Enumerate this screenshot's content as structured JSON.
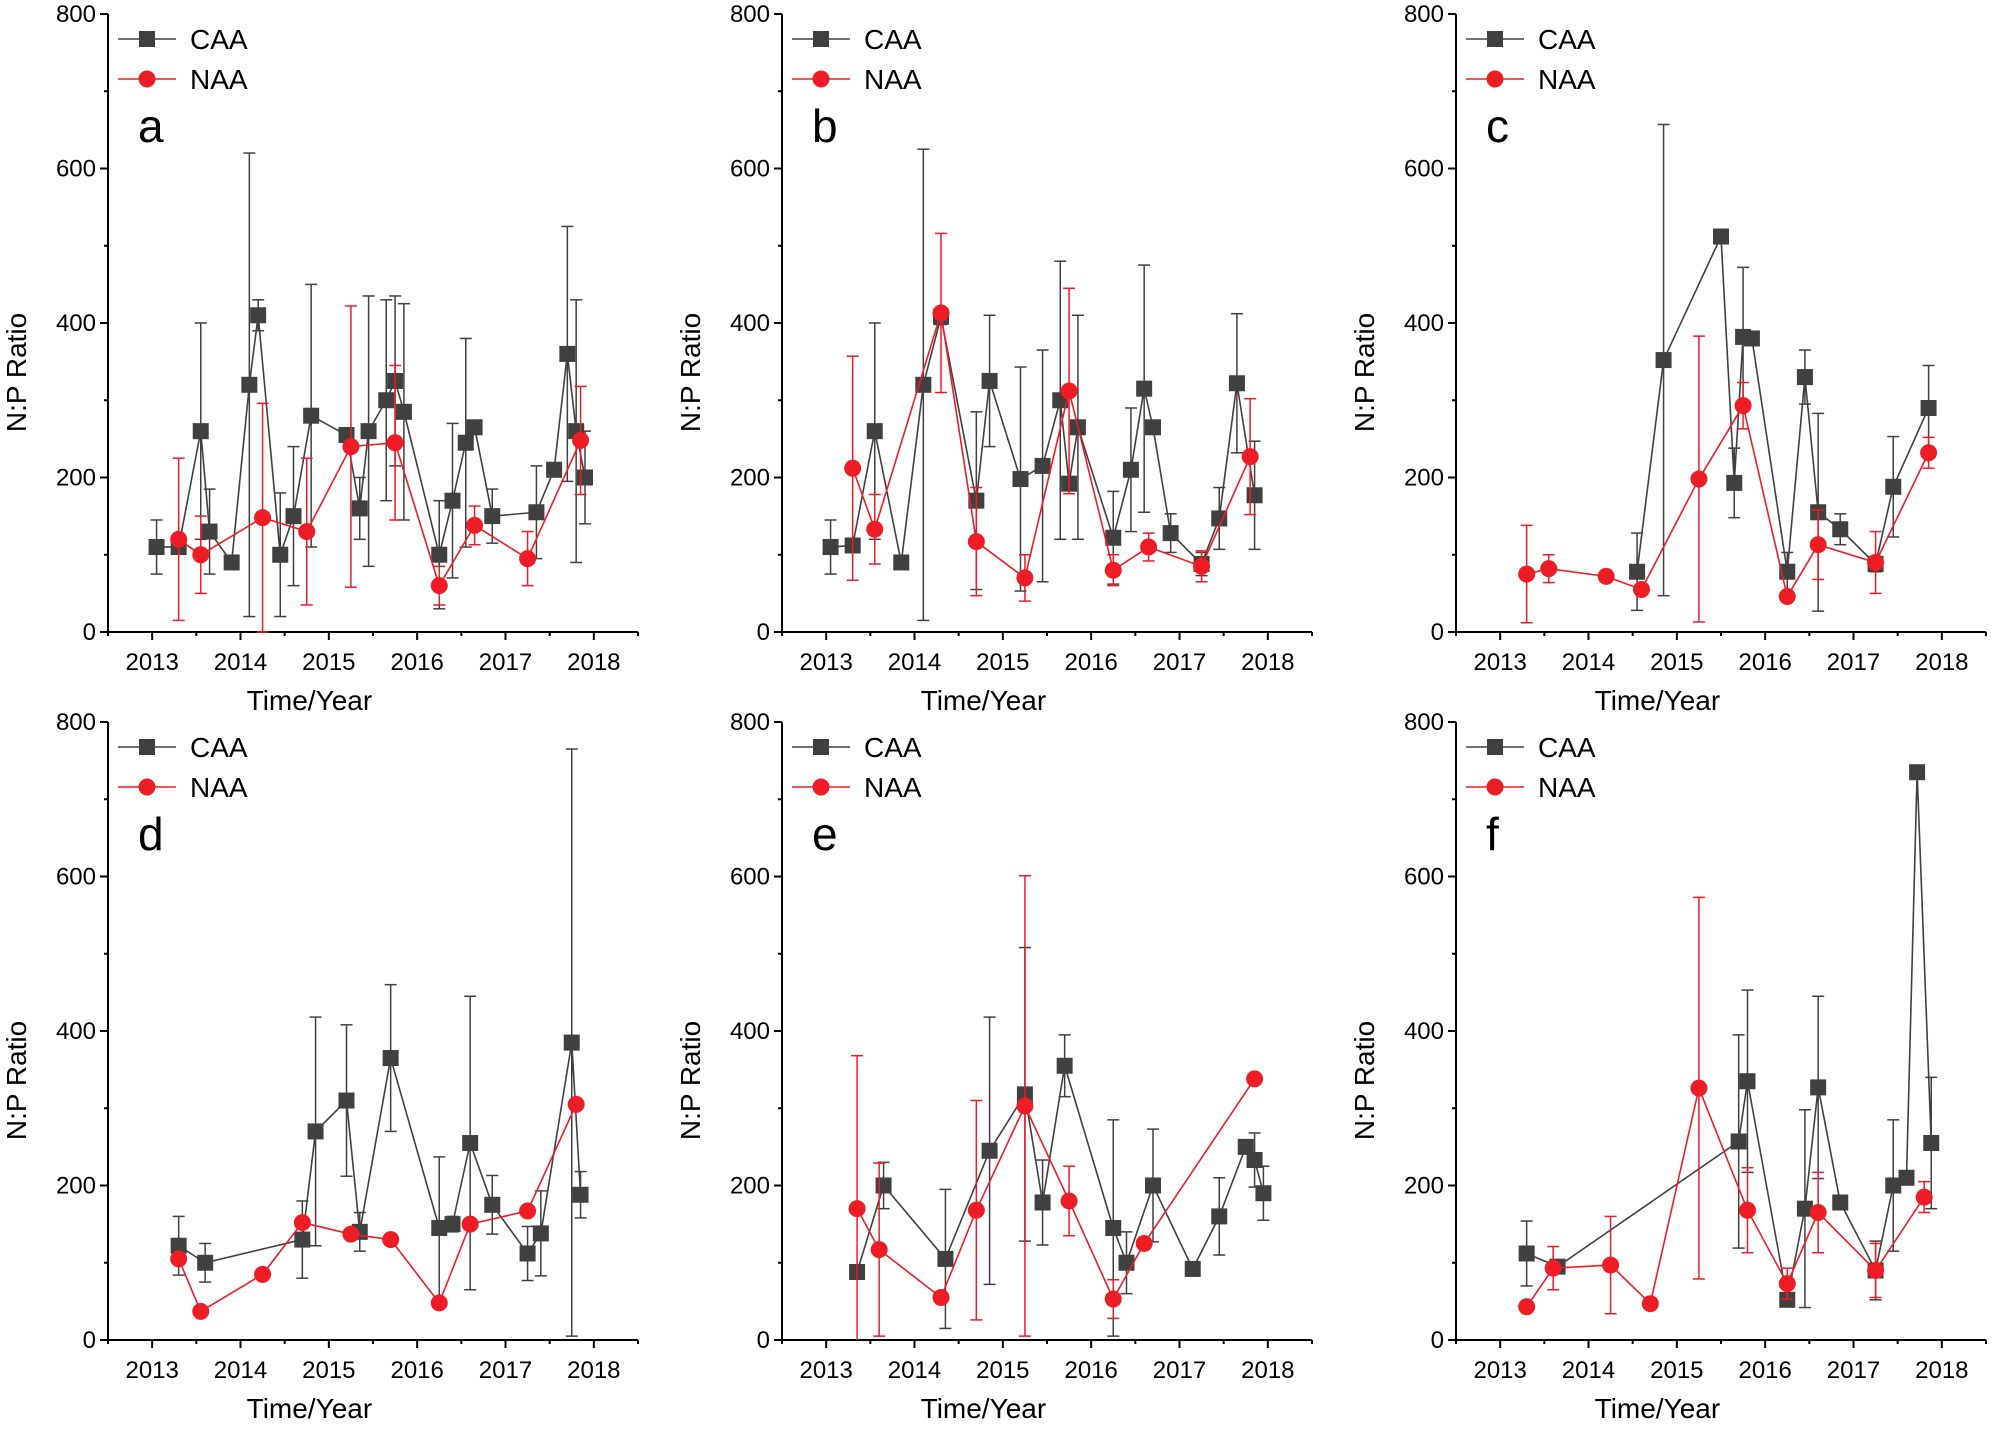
{
  "colors": {
    "caa": "#404040",
    "naa": "#ee1c25",
    "axis": "#000000"
  },
  "chart_data": [
    {
      "type": "line",
      "panel": "a",
      "xlabel": "Time/Year",
      "ylabel": "N:P Ratio",
      "xlim": [
        2012.5,
        2018.5
      ],
      "ylim": [
        0,
        800
      ],
      "xticks": [
        2013,
        2014,
        2015,
        2016,
        2017,
        2018
      ],
      "yticks": [
        0,
        200,
        400,
        600,
        800
      ],
      "legend": [
        "CAA",
        "NAA"
      ],
      "legend_position": "top-left",
      "series": [
        {
          "name": "CAA",
          "marker": "square",
          "x": [
            2013.05,
            2013.3,
            2013.55,
            2013.65,
            2013.9,
            2014.1,
            2014.2,
            2014.45,
            2014.6,
            2014.8,
            2015.2,
            2015.35,
            2015.45,
            2015.65,
            2015.75,
            2015.85,
            2016.25,
            2016.4,
            2016.55,
            2016.65,
            2016.85,
            2017.35,
            2017.55,
            2017.7,
            2017.8,
            2017.9
          ],
          "y": [
            110,
            110,
            260,
            130,
            90,
            320,
            410,
            100,
            150,
            280,
            255,
            160,
            260,
            300,
            325,
            285,
            100,
            170,
            245,
            265,
            150,
            155,
            210,
            360,
            260,
            200
          ],
          "err": [
            35,
            0,
            140,
            55,
            0,
            300,
            20,
            80,
            90,
            170,
            0,
            40,
            175,
            130,
            110,
            140,
            70,
            100,
            135,
            0,
            35,
            60,
            0,
            165,
            170,
            60
          ]
        },
        {
          "name": "NAA",
          "marker": "circle",
          "x": [
            2013.3,
            2013.55,
            2014.25,
            2014.75,
            2015.25,
            2015.75,
            2016.25,
            2016.65,
            2017.25,
            2017.85
          ],
          "y": [
            120,
            100,
            148,
            130,
            240,
            245,
            60,
            138,
            95,
            248
          ],
          "err": [
            105,
            50,
            148,
            95,
            182,
            100,
            25,
            25,
            35,
            70
          ]
        }
      ]
    },
    {
      "type": "line",
      "panel": "b",
      "xlabel": "Time/Year",
      "ylabel": "N:P Ratio",
      "xlim": [
        2012.5,
        2018.5
      ],
      "ylim": [
        0,
        800
      ],
      "xticks": [
        2013,
        2014,
        2015,
        2016,
        2017,
        2018
      ],
      "yticks": [
        0,
        200,
        400,
        600,
        800
      ],
      "legend": [
        "CAA",
        "NAA"
      ],
      "legend_position": "top-left",
      "series": [
        {
          "name": "CAA",
          "marker": "square",
          "x": [
            2013.05,
            2013.3,
            2013.55,
            2013.85,
            2014.1,
            2014.3,
            2014.7,
            2014.85,
            2015.2,
            2015.45,
            2015.65,
            2015.75,
            2015.85,
            2016.25,
            2016.45,
            2016.6,
            2016.7,
            2016.9,
            2017.25,
            2017.45,
            2017.65,
            2017.85
          ],
          "y": [
            110,
            112,
            260,
            90,
            320,
            408,
            170,
            325,
            198,
            215,
            300,
            192,
            265,
            122,
            210,
            315,
            265,
            128,
            88,
            147,
            322,
            177
          ],
          "err": [
            35,
            0,
            140,
            0,
            305,
            10,
            115,
            85,
            145,
            150,
            180,
            0,
            145,
            60,
            80,
            160,
            0,
            25,
            15,
            40,
            90,
            70
          ]
        },
        {
          "name": "NAA",
          "marker": "circle",
          "x": [
            2013.3,
            2013.55,
            2014.3,
            2014.7,
            2015.25,
            2015.75,
            2016.25,
            2016.65,
            2017.25,
            2017.8
          ],
          "y": [
            212,
            133,
            413,
            117,
            70,
            312,
            80,
            110,
            85,
            227
          ],
          "err": [
            145,
            45,
            103,
            70,
            30,
            133,
            20,
            18,
            20,
            75
          ]
        }
      ]
    },
    {
      "type": "line",
      "panel": "c",
      "xlabel": "Time/Year",
      "ylabel": "N:P Ratio",
      "xlim": [
        2012.5,
        2018.5
      ],
      "ylim": [
        0,
        800
      ],
      "xticks": [
        2013,
        2014,
        2015,
        2016,
        2017,
        2018
      ],
      "yticks": [
        0,
        200,
        400,
        600,
        800
      ],
      "legend": [
        "CAA",
        "NAA"
      ],
      "legend_position": "top-left",
      "series": [
        {
          "name": "CAA",
          "marker": "square",
          "x": [
            2014.55,
            2014.85,
            2015.5,
            2015.65,
            2015.75,
            2015.85,
            2016.25,
            2016.45,
            2016.6,
            2016.85,
            2017.25,
            2017.45,
            2017.85
          ],
          "y": [
            78,
            352,
            512,
            193,
            382,
            380,
            78,
            330,
            155,
            133,
            88,
            188,
            290
          ],
          "err": [
            50,
            305,
            0,
            45,
            90,
            0,
            25,
            35,
            128,
            20,
            10,
            65,
            55
          ]
        },
        {
          "name": "NAA",
          "marker": "circle",
          "x": [
            2013.3,
            2013.55,
            2014.2,
            2014.6,
            2015.25,
            2015.75,
            2016.25,
            2016.6,
            2017.25,
            2017.85
          ],
          "y": [
            75,
            82,
            72,
            55,
            198,
            293,
            46,
            113,
            90,
            232
          ],
          "err": [
            63,
            18,
            5,
            0,
            185,
            30,
            0,
            45,
            40,
            20
          ]
        }
      ]
    },
    {
      "type": "line",
      "panel": "d",
      "xlabel": "Time/Year",
      "ylabel": "N:P Ratio",
      "xlim": [
        2012.5,
        2018.5
      ],
      "ylim": [
        0,
        800
      ],
      "xticks": [
        2013,
        2014,
        2015,
        2016,
        2017,
        2018
      ],
      "yticks": [
        0,
        200,
        400,
        600,
        800
      ],
      "legend": [
        "CAA",
        "NAA"
      ],
      "legend_position": "top-left",
      "series": [
        {
          "name": "CAA",
          "marker": "square",
          "x": [
            2013.3,
            2013.6,
            2014.7,
            2014.85,
            2015.2,
            2015.35,
            2015.7,
            2016.25,
            2016.4,
            2016.6,
            2016.85,
            2017.25,
            2017.4,
            2017.75,
            2017.85
          ],
          "y": [
            122,
            100,
            130,
            270,
            310,
            140,
            365,
            145,
            150,
            255,
            175,
            112,
            138,
            385,
            188
          ],
          "err": [
            38,
            25,
            50,
            148,
            98,
            25,
            95,
            92,
            10,
            190,
            38,
            35,
            55,
            380,
            30
          ]
        },
        {
          "name": "NAA",
          "marker": "circle",
          "x": [
            2013.3,
            2013.55,
            2014.25,
            2014.7,
            2015.25,
            2015.7,
            2016.25,
            2016.6,
            2017.25,
            2017.8
          ],
          "y": [
            105,
            37,
            85,
            152,
            137,
            130,
            48,
            150,
            167,
            305
          ],
          "err": [
            0,
            0,
            0,
            0,
            0,
            0,
            0,
            0,
            0,
            0
          ]
        }
      ]
    },
    {
      "type": "line",
      "panel": "e",
      "xlabel": "Time/Year",
      "ylabel": "N:P Ratio",
      "xlim": [
        2012.5,
        2018.5
      ],
      "ylim": [
        0,
        800
      ],
      "xticks": [
        2013,
        2014,
        2015,
        2016,
        2017,
        2018
      ],
      "yticks": [
        0,
        200,
        400,
        600,
        800
      ],
      "legend": [
        "CAA",
        "NAA"
      ],
      "legend_position": "top-left",
      "series": [
        {
          "name": "CAA",
          "marker": "square",
          "x": [
            2013.35,
            2013.65,
            2014.35,
            2014.85,
            2015.25,
            2015.45,
            2015.7,
            2016.25,
            2016.4,
            2016.7,
            2017.15,
            2017.45,
            2017.75,
            2017.85,
            2017.95
          ],
          "y": [
            88,
            200,
            105,
            245,
            318,
            178,
            355,
            145,
            100,
            200,
            92,
            160,
            250,
            233,
            190
          ],
          "err": [
            0,
            30,
            90,
            173,
            190,
            55,
            40,
            140,
            40,
            73,
            0,
            50,
            0,
            35,
            35
          ]
        },
        {
          "name": "NAA",
          "marker": "circle",
          "x": [
            2013.35,
            2013.6,
            2014.3,
            2014.7,
            2015.25,
            2015.75,
            2016.25,
            2016.6,
            2017.85
          ],
          "y": [
            170,
            117,
            55,
            168,
            303,
            180,
            53,
            125,
            338
          ],
          "err": [
            198,
            112,
            0,
            142,
            298,
            45,
            25,
            0,
            0
          ]
        }
      ]
    },
    {
      "type": "line",
      "panel": "f",
      "xlabel": "Time/Year",
      "ylabel": "N:P Ratio",
      "xlim": [
        2012.5,
        2018.5
      ],
      "ylim": [
        0,
        800
      ],
      "xticks": [
        2013,
        2014,
        2015,
        2016,
        2017,
        2018
      ],
      "yticks": [
        0,
        200,
        400,
        600,
        800
      ],
      "legend": [
        "CAA",
        "NAA"
      ],
      "legend_position": "top-left",
      "series": [
        {
          "name": "CAA",
          "marker": "square",
          "x": [
            2013.3,
            2013.65,
            2015.7,
            2015.8,
            2016.25,
            2016.45,
            2016.6,
            2016.85,
            2017.25,
            2017.45,
            2017.6,
            2017.72,
            2017.88
          ],
          "y": [
            112,
            95,
            257,
            335,
            52,
            170,
            327,
            178,
            90,
            200,
            210,
            735,
            255
          ],
          "err": [
            42,
            0,
            138,
            118,
            0,
            128,
            118,
            0,
            38,
            85,
            0,
            0,
            85
          ]
        },
        {
          "name": "NAA",
          "marker": "circle",
          "x": [
            2013.3,
            2013.6,
            2014.25,
            2014.7,
            2015.25,
            2015.8,
            2016.25,
            2016.6,
            2017.25,
            2017.8
          ],
          "y": [
            43,
            93,
            97,
            47,
            326,
            168,
            73,
            165,
            90,
            185
          ],
          "err": [
            0,
            28,
            63,
            0,
            247,
            55,
            20,
            52,
            35,
            20
          ]
        }
      ]
    }
  ]
}
